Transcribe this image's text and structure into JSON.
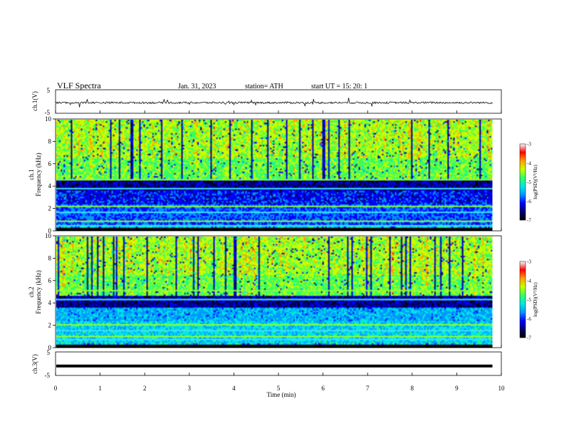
{
  "header": {
    "title": "VLF  Spectra",
    "date": "Jan. 31, 2023",
    "station": "station= ATH",
    "start": "start  UT  =    15: 20: 1"
  },
  "colors": {
    "waveform": "#111111",
    "frame": "#000000",
    "colormap": [
      "#000000",
      "#00006e",
      "#0000ff",
      "#0096ff",
      "#00e6e6",
      "#32ff64",
      "#c8ff00",
      "#ffa000",
      "#ff0000",
      "#ffffff"
    ]
  },
  "chart_data": [
    {
      "type": "line",
      "panel": "ch1-waveform",
      "ylabel": "ch.1(V)",
      "yticks": [
        "5",
        "-5"
      ],
      "ylim": [
        -5,
        5
      ],
      "xlim": [
        0,
        10
      ],
      "series": [
        {
          "values_range": [
            -1.5,
            1.0
          ],
          "mean": -0.5
        }
      ]
    },
    {
      "type": "heatmap",
      "panel": "ch1-spectrogram",
      "ylabel": "ch.1",
      "ylabel2": "Frequency (kHz)",
      "yticks": [
        "10",
        "8",
        "6",
        "4",
        "2",
        "0"
      ],
      "ylim": [
        0,
        10
      ],
      "xlim": [
        0,
        10
      ],
      "colorbar": {
        "label": "log(PSD)(V²/Hz)",
        "ticks": [
          "-3",
          "-4",
          "-5",
          "-6",
          "-7"
        ],
        "range": [
          -7,
          -3
        ]
      }
    },
    {
      "type": "heatmap",
      "panel": "ch2-spectrogram",
      "ylabel": "ch.2",
      "ylabel2": "Frequency (kHz)",
      "yticks": [
        "10",
        "8",
        "6",
        "4",
        "2",
        "0"
      ],
      "ylim": [
        0,
        10
      ],
      "xlim": [
        0,
        10
      ],
      "colorbar": {
        "label": "log(PSD)(V²/Hz)",
        "ticks": [
          "-3",
          "-4",
          "-5",
          "-6",
          "-7"
        ],
        "range": [
          -7,
          -3
        ]
      }
    },
    {
      "type": "line",
      "panel": "ch3-waveform",
      "ylabel": "ch.3(V)",
      "yticks": [
        "5",
        "-5"
      ],
      "ylim": [
        -5,
        5
      ],
      "xlim": [
        0,
        10
      ],
      "series": [
        {
          "constant": -1.0
        }
      ]
    }
  ],
  "xaxis": {
    "label": "Time  (min)",
    "ticks": [
      "0",
      "1",
      "2",
      "3",
      "4",
      "5",
      "6",
      "7",
      "8",
      "9",
      "10"
    ]
  }
}
